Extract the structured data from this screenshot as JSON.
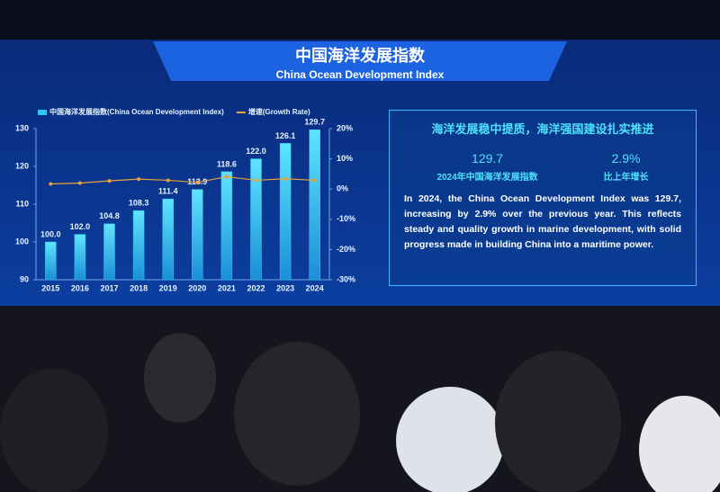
{
  "header": {
    "title": "中国海洋发展指数",
    "subtitle": "China Ocean Development Index"
  },
  "chart_data": {
    "type": "bar",
    "categories": [
      "2015",
      "2016",
      "2017",
      "2018",
      "2019",
      "2020",
      "2021",
      "2022",
      "2023",
      "2024"
    ],
    "series": [
      {
        "name": "中国海洋发展指数(China Ocean Development Index)",
        "type": "bar",
        "color": "#2fc6f2",
        "values": [
          100.0,
          102.0,
          104.8,
          108.3,
          111.4,
          113.9,
          118.6,
          122.0,
          126.1,
          129.7
        ],
        "value_labels": [
          "100.0",
          "102.0",
          "104.8",
          "108.3",
          "111.4",
          "113.9",
          "118.6",
          "122.0",
          "126.1",
          "129.7"
        ]
      },
      {
        "name": "增速(Growth Rate)",
        "type": "line",
        "axis": "y2",
        "color": "#e8a33a",
        "values": [
          1.7,
          2.0,
          2.7,
          3.3,
          2.9,
          2.2,
          4.1,
          2.9,
          3.4,
          2.9
        ]
      }
    ],
    "ylim": [
      90,
      130
    ],
    "yticks": [
      90,
      100,
      110,
      120,
      130
    ],
    "y2lim": [
      -30,
      20
    ],
    "y2ticks": [
      {
        "value": -30,
        "label": "-30%"
      },
      {
        "value": -20,
        "label": "-20%"
      },
      {
        "value": -10,
        "label": "-10%"
      },
      {
        "value": 0,
        "label": "0%"
      },
      {
        "value": 10,
        "label": "10%"
      },
      {
        "value": 20,
        "label": "20%"
      }
    ],
    "grid": false
  },
  "panel": {
    "title": "海洋发展稳中提质，海洋强国建设扎实推进",
    "stats": [
      {
        "value": "129.7",
        "label": "2024年中国海洋发展指数"
      },
      {
        "value": "2.9%",
        "label": "比上年增长"
      }
    ],
    "text": "In 2024, the China Ocean Development Index was 129.7, increasing by 2.9% over the previous year. This reflects steady and quality growth in marine development, with solid progress made in building China into a maritime power."
  }
}
